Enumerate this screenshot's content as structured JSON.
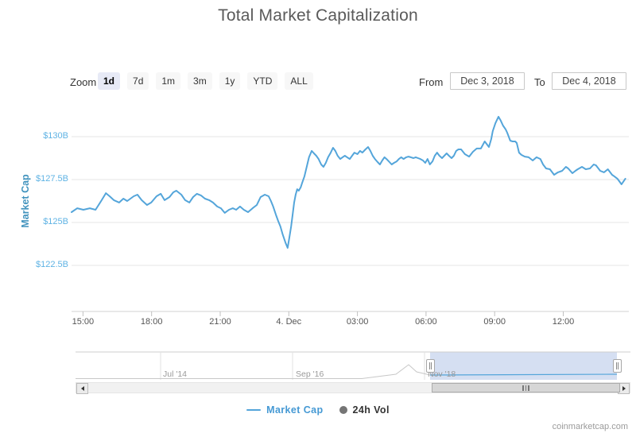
{
  "page": {
    "title": "Total Market Capitalization",
    "watermark": "coinmarketcap.com"
  },
  "colors": {
    "series_line": "#54a5da",
    "y_tick_label": "#5fb3e4",
    "y_axis_title": "#4394be",
    "navigator_selection": "#cdd9ee",
    "legend_market_cap": "#4599d4",
    "volume_marker": "#757575",
    "gridline": "#e6e6e6"
  },
  "controls": {
    "zoom_label": "Zoom",
    "zoom_buttons": [
      {
        "label": "1d",
        "selected": true
      },
      {
        "label": "7d",
        "selected": false
      },
      {
        "label": "1m",
        "selected": false
      },
      {
        "label": "3m",
        "selected": false
      },
      {
        "label": "1y",
        "selected": false
      },
      {
        "label": "YTD",
        "selected": false
      },
      {
        "label": "ALL",
        "selected": false
      }
    ],
    "from_label": "From",
    "from_value": "Dec 3, 2018",
    "to_label": "To",
    "to_value": "Dec 4, 2018"
  },
  "chart_data": {
    "type": "line",
    "title": "Total Market Capitalization",
    "xlabel": "",
    "ylabel": "Market Cap",
    "unit": "USD billions",
    "ylim": [
      119.8,
      131.7
    ],
    "grid": "horizontal",
    "legend_position": "bottom",
    "y_ticks": [
      {
        "label": "$130B",
        "value": 130
      },
      {
        "label": "$127.5B",
        "value": 127.5
      },
      {
        "label": "$125B",
        "value": 125
      },
      {
        "label": "$122.5B",
        "value": 122.5
      }
    ],
    "x_ticks": [
      {
        "label": "15:00",
        "min": 30
      },
      {
        "label": "18:00",
        "min": 210
      },
      {
        "label": "21:00",
        "min": 390
      },
      {
        "label": "4. Dec",
        "min": 570
      },
      {
        "label": "03:00",
        "min": 750
      },
      {
        "label": "06:00",
        "min": 930
      },
      {
        "label": "09:00",
        "min": 1110
      },
      {
        "label": "12:00",
        "min": 1290
      }
    ],
    "x_range": "Dec 3, 2018 14:30 to Dec 4, 2018 14:43",
    "series": [
      {
        "name": "Market Cap",
        "color": "#54a5da",
        "points": [
          [
            "14:30",
            125.6
          ],
          [
            "14:45",
            125.83
          ],
          [
            "15:01",
            125.74
          ],
          [
            "15:18",
            125.83
          ],
          [
            "15:33",
            125.74
          ],
          [
            "15:49",
            126.3
          ],
          [
            "16:00",
            126.71
          ],
          [
            "16:10",
            126.53
          ],
          [
            "16:21",
            126.3
          ],
          [
            "16:35",
            126.16
          ],
          [
            "16:46",
            126.39
          ],
          [
            "16:56",
            126.25
          ],
          [
            "17:13",
            126.53
          ],
          [
            "17:23",
            126.62
          ],
          [
            "17:34",
            126.3
          ],
          [
            "17:48",
            126.02
          ],
          [
            "17:59",
            126.16
          ],
          [
            "18:13",
            126.53
          ],
          [
            "18:24",
            126.67
          ],
          [
            "18:34",
            126.3
          ],
          [
            "18:47",
            126.48
          ],
          [
            "18:57",
            126.76
          ],
          [
            "19:05",
            126.85
          ],
          [
            "19:18",
            126.62
          ],
          [
            "19:28",
            126.3
          ],
          [
            "19:39",
            126.16
          ],
          [
            "19:49",
            126.48
          ],
          [
            "19:59",
            126.67
          ],
          [
            "20:10",
            126.57
          ],
          [
            "20:20",
            126.39
          ],
          [
            "20:31",
            126.3
          ],
          [
            "20:41",
            126.16
          ],
          [
            "20:52",
            125.93
          ],
          [
            "21:02",
            125.83
          ],
          [
            "21:12",
            125.56
          ],
          [
            "21:23",
            125.74
          ],
          [
            "21:33",
            125.83
          ],
          [
            "21:42",
            125.74
          ],
          [
            "21:52",
            125.93
          ],
          [
            "22:02",
            125.74
          ],
          [
            "22:13",
            125.6
          ],
          [
            "22:25",
            125.83
          ],
          [
            "22:36",
            126.02
          ],
          [
            "22:46",
            126.48
          ],
          [
            "22:57",
            126.62
          ],
          [
            "23:07",
            126.53
          ],
          [
            "23:13",
            126.25
          ],
          [
            "23:19",
            125.93
          ],
          [
            "23:26",
            125.46
          ],
          [
            "23:32",
            125.09
          ],
          [
            "23:38",
            124.77
          ],
          [
            "23:44",
            124.3
          ],
          [
            "23:51",
            123.84
          ],
          [
            "23:57",
            123.52
          ],
          [
            "00:01",
            124.07
          ],
          [
            "00:06",
            124.77
          ],
          [
            "00:10",
            125.46
          ],
          [
            "00:14",
            126.16
          ],
          [
            "00:18",
            126.62
          ],
          [
            "00:22",
            126.94
          ],
          [
            "00:26",
            126.85
          ],
          [
            "00:31",
            127.04
          ],
          [
            "00:35",
            127.31
          ],
          [
            "00:41",
            127.68
          ],
          [
            "00:47",
            128.24
          ],
          [
            "00:53",
            128.8
          ],
          [
            "01:00",
            129.17
          ],
          [
            "01:06",
            129.03
          ],
          [
            "01:12",
            128.89
          ],
          [
            "01:18",
            128.7
          ],
          [
            "01:25",
            128.38
          ],
          [
            "01:31",
            128.24
          ],
          [
            "01:37",
            128.47
          ],
          [
            "01:43",
            128.8
          ],
          [
            "01:50",
            129.07
          ],
          [
            "01:56",
            129.35
          ],
          [
            "02:02",
            129.17
          ],
          [
            "02:08",
            128.89
          ],
          [
            "02:15",
            128.7
          ],
          [
            "02:21",
            128.8
          ],
          [
            "02:27",
            128.89
          ],
          [
            "02:33",
            128.8
          ],
          [
            "02:40",
            128.7
          ],
          [
            "02:46",
            128.89
          ],
          [
            "02:52",
            129.07
          ],
          [
            "03:00",
            128.98
          ],
          [
            "03:07",
            129.17
          ],
          [
            "03:13",
            129.07
          ],
          [
            "03:21",
            129.26
          ],
          [
            "03:28",
            129.4
          ],
          [
            "03:34",
            129.17
          ],
          [
            "03:40",
            128.89
          ],
          [
            "03:46",
            128.7
          ],
          [
            "03:53",
            128.52
          ],
          [
            "03:59",
            128.38
          ],
          [
            "04:05",
            128.61
          ],
          [
            "04:11",
            128.8
          ],
          [
            "04:18",
            128.66
          ],
          [
            "04:24",
            128.52
          ],
          [
            "04:30",
            128.38
          ],
          [
            "04:36",
            128.47
          ],
          [
            "04:43",
            128.56
          ],
          [
            "04:49",
            128.7
          ],
          [
            "04:55",
            128.8
          ],
          [
            "05:01",
            128.7
          ],
          [
            "05:08",
            128.8
          ],
          [
            "05:14",
            128.84
          ],
          [
            "05:20",
            128.8
          ],
          [
            "05:27",
            128.75
          ],
          [
            "05:33",
            128.8
          ],
          [
            "05:39",
            128.75
          ],
          [
            "05:45",
            128.7
          ],
          [
            "05:52",
            128.61
          ],
          [
            "05:58",
            128.47
          ],
          [
            "06:04",
            128.7
          ],
          [
            "06:10",
            128.38
          ],
          [
            "06:17",
            128.56
          ],
          [
            "06:23",
            128.89
          ],
          [
            "06:29",
            129.07
          ],
          [
            "06:35",
            128.89
          ],
          [
            "06:42",
            128.75
          ],
          [
            "06:48",
            128.89
          ],
          [
            "06:54",
            129.03
          ],
          [
            "07:00",
            128.89
          ],
          [
            "07:07",
            128.75
          ],
          [
            "07:13",
            128.89
          ],
          [
            "07:19",
            129.17
          ],
          [
            "07:25",
            129.26
          ],
          [
            "07:32",
            129.26
          ],
          [
            "07:42",
            128.98
          ],
          [
            "07:53",
            128.84
          ],
          [
            "08:03",
            129.12
          ],
          [
            "08:13",
            129.31
          ],
          [
            "08:24",
            129.31
          ],
          [
            "08:34",
            129.72
          ],
          [
            "08:45",
            129.4
          ],
          [
            "08:51",
            129.86
          ],
          [
            "08:55",
            130.32
          ],
          [
            "09:02",
            130.79
          ],
          [
            "09:10",
            131.16
          ],
          [
            "09:16",
            130.93
          ],
          [
            "09:22",
            130.65
          ],
          [
            "09:29",
            130.42
          ],
          [
            "09:33",
            130.23
          ],
          [
            "09:37",
            130.0
          ],
          [
            "09:41",
            129.77
          ],
          [
            "09:47",
            129.72
          ],
          [
            "09:54",
            129.72
          ],
          [
            "09:58",
            129.63
          ],
          [
            "10:04",
            129.07
          ],
          [
            "10:10",
            128.94
          ],
          [
            "10:19",
            128.84
          ],
          [
            "10:29",
            128.8
          ],
          [
            "10:40",
            128.61
          ],
          [
            "10:50",
            128.8
          ],
          [
            "11:00",
            128.7
          ],
          [
            "11:07",
            128.38
          ],
          [
            "11:15",
            128.15
          ],
          [
            "11:25",
            128.1
          ],
          [
            "11:36",
            127.78
          ],
          [
            "11:46",
            127.92
          ],
          [
            "11:57",
            128.01
          ],
          [
            "12:07",
            128.24
          ],
          [
            "12:13",
            128.15
          ],
          [
            "12:24",
            127.87
          ],
          [
            "12:32",
            128.01
          ],
          [
            "12:38",
            128.1
          ],
          [
            "12:49",
            128.24
          ],
          [
            "12:59",
            128.1
          ],
          [
            "13:10",
            128.15
          ],
          [
            "13:20",
            128.38
          ],
          [
            "13:26",
            128.33
          ],
          [
            "13:37",
            128.01
          ],
          [
            "13:47",
            127.92
          ],
          [
            "13:57",
            128.1
          ],
          [
            "14:08",
            127.78
          ],
          [
            "14:14",
            127.69
          ],
          [
            "14:22",
            127.55
          ],
          [
            "14:33",
            127.22
          ],
          [
            "14:43",
            127.55
          ]
        ]
      }
    ],
    "legend": [
      {
        "label": "Market Cap",
        "marker": "line",
        "color": "#4599d4"
      },
      {
        "label": "24h Vol",
        "marker": "circle",
        "color": "#757575"
      }
    ]
  },
  "navigator": {
    "axis_labels": [
      {
        "label": "Jul '14"
      },
      {
        "label": "Sep '16"
      },
      {
        "label": "Nov '18"
      }
    ]
  }
}
